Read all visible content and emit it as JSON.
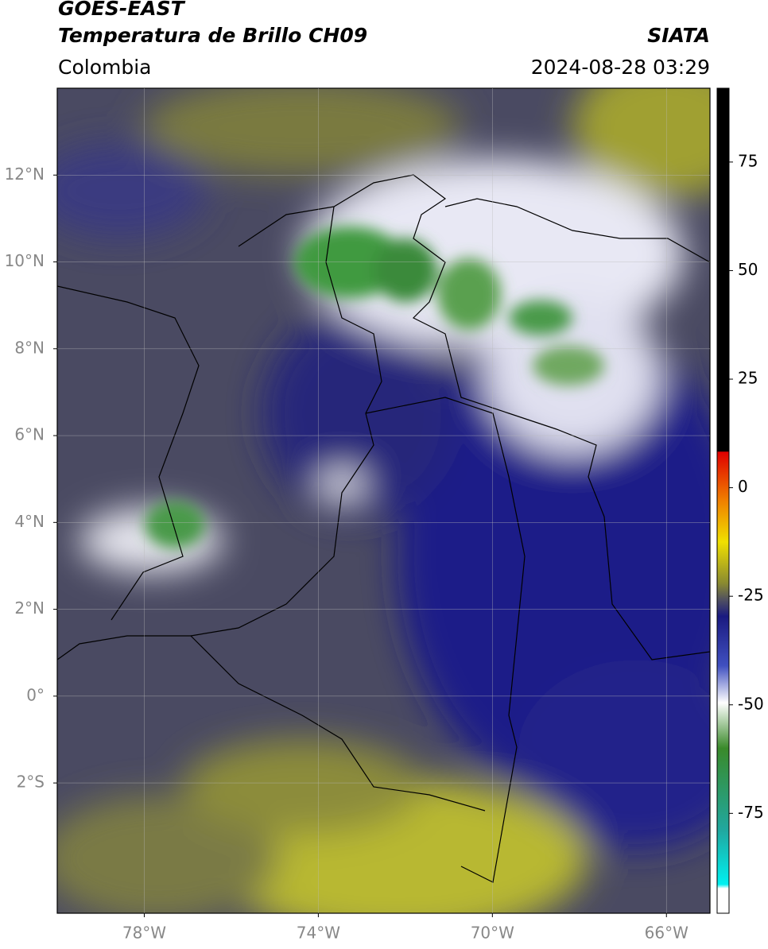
{
  "header": {
    "title": "GOES-EAST",
    "subtitle": "Temperatura de Brillo CH09",
    "region": "Colombia",
    "source": "SIATA",
    "timestamp": "2024-08-28 03:29"
  },
  "map": {
    "xlim": [
      -80,
      -65
    ],
    "ylim": [
      -5,
      14
    ],
    "grid": true,
    "xticks": [
      {
        "value": -78,
        "label": "78°W"
      },
      {
        "value": -74,
        "label": "74°W"
      },
      {
        "value": -70,
        "label": "70°W"
      },
      {
        "value": -66,
        "label": "66°W"
      }
    ],
    "yticks": [
      {
        "value": 12,
        "label": "12°N"
      },
      {
        "value": 10,
        "label": "10°N"
      },
      {
        "value": 8,
        "label": "8°N"
      },
      {
        "value": 6,
        "label": "6°N"
      },
      {
        "value": 4,
        "label": "4°N"
      },
      {
        "value": 2,
        "label": "2°N"
      },
      {
        "value": 0,
        "label": "0°"
      },
      {
        "value": -2,
        "label": "2°S"
      }
    ]
  },
  "colorbar": {
    "lim": [
      -98,
      92
    ],
    "ticks": [
      75,
      50,
      25,
      0,
      -25,
      -50,
      -75
    ]
  }
}
